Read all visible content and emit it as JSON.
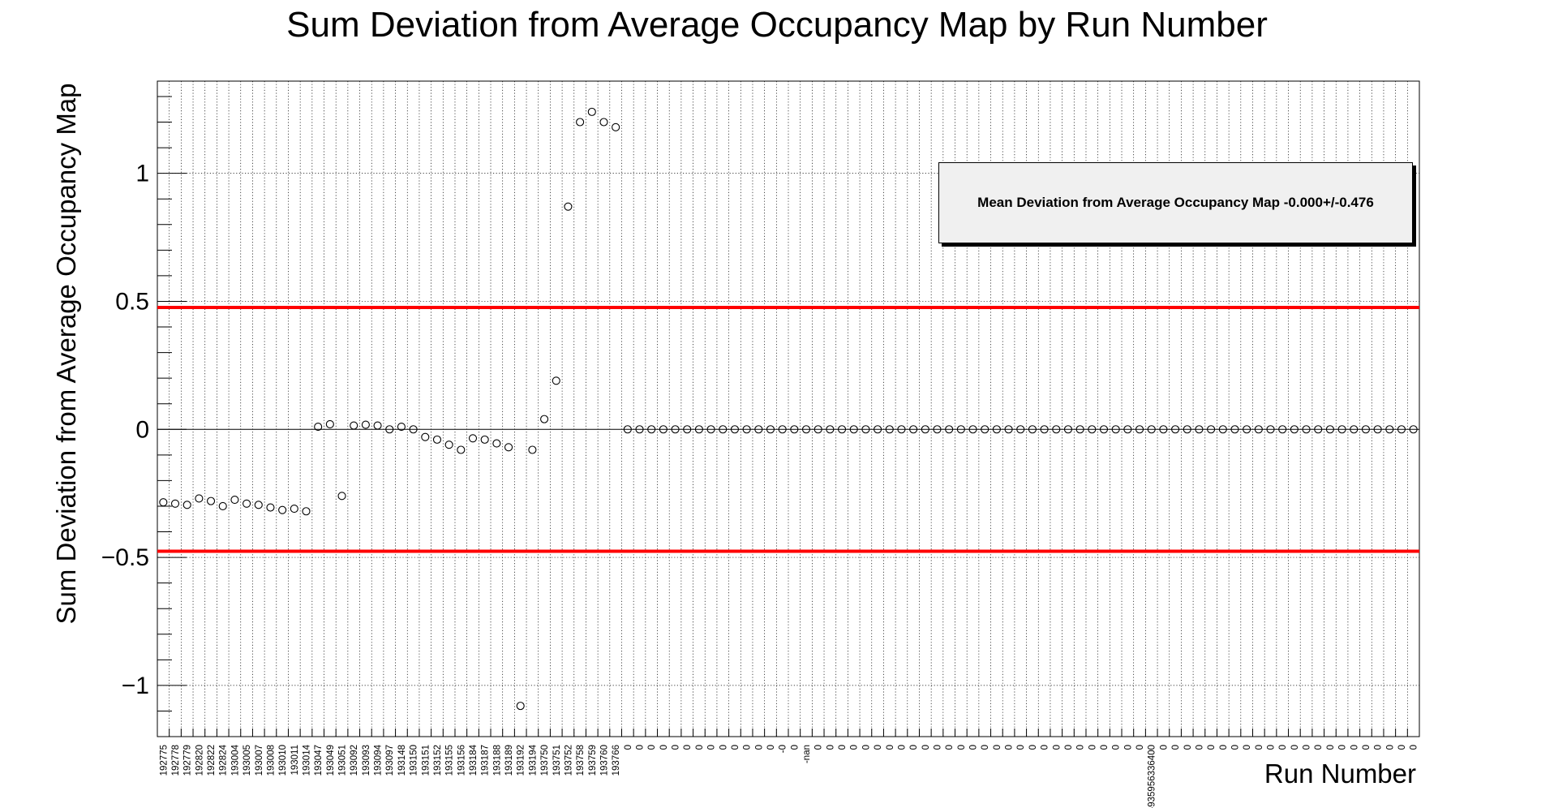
{
  "chart_data": {
    "type": "scatter",
    "title": "Sum Deviation from Average Occupancy Map by Run Number",
    "xlabel": "Run Number",
    "ylabel": "Sum Deviation from Average Occupancy Map",
    "ylim": [
      -1.2,
      1.36
    ],
    "yticks": [
      -1,
      -0.5,
      0,
      0.5,
      1
    ],
    "ytick_labels": [
      "−1",
      "−0.5",
      "0",
      "0.5",
      "1"
    ],
    "grid": true,
    "legend": {
      "text": "Mean Deviation from Average Occupancy Map -0.000+/-0.476",
      "position": "top-right"
    },
    "reference_lines": [
      {
        "y": 0.476,
        "color": "#ff0000"
      },
      {
        "y": -0.476,
        "color": "#ff0000"
      },
      {
        "y": 0,
        "color": "#000000"
      }
    ],
    "categories": [
      "192775",
      "192778",
      "192779",
      "192820",
      "192822",
      "192824",
      "193004",
      "193005",
      "193007",
      "193008",
      "193010",
      "193011",
      "193014",
      "193047",
      "193049",
      "193051",
      "193092",
      "193093",
      "193094",
      "193097",
      "193148",
      "193150",
      "193151",
      "193152",
      "193155",
      "193156",
      "193184",
      "193187",
      "193188",
      "193189",
      "193192",
      "193194",
      "193750",
      "193751",
      "193752",
      "193758",
      "193759",
      "193760",
      "193766",
      "0",
      "0",
      "0",
      "0",
      "0",
      "0",
      "0",
      "0",
      "0",
      "0",
      "0",
      "0",
      "0",
      "-0",
      "0",
      "-nan",
      "0",
      "0",
      "0",
      "0",
      "0",
      "0",
      "0",
      "0",
      "0",
      "0",
      "0",
      "0",
      "0",
      "0",
      "0",
      "0",
      "0",
      "0",
      "0",
      "0",
      "0",
      "0",
      "0",
      "0",
      "0",
      "0",
      "0",
      "0",
      "-935956336400",
      "0",
      "0",
      "0",
      "0",
      "0",
      "0",
      "0",
      "0",
      "0",
      "0",
      "0",
      "0",
      "0",
      "0",
      "0",
      "0",
      "0",
      "0",
      "0",
      "0",
      "0",
      "0"
    ],
    "values": [
      -0.285,
      -0.29,
      -0.295,
      -0.27,
      -0.28,
      -0.3,
      -0.275,
      -0.29,
      -0.295,
      -0.305,
      -0.315,
      -0.31,
      -0.32,
      0.01,
      0.02,
      -0.26,
      0.015,
      0.018,
      0.015,
      0.0,
      0.01,
      0.0,
      -0.03,
      -0.04,
      -0.06,
      -0.08,
      -0.035,
      -0.04,
      -0.055,
      -0.07,
      -1.08,
      -0.08,
      0.04,
      0.19,
      0.87,
      1.2,
      1.24,
      1.2,
      1.18,
      0,
      0,
      0,
      0,
      0,
      0,
      0,
      0,
      0,
      0,
      0,
      0,
      0,
      0,
      0,
      0,
      0,
      0,
      0,
      0,
      0,
      0,
      0,
      0,
      0,
      0,
      0,
      0,
      0,
      0,
      0,
      0,
      0,
      0,
      0,
      0,
      0,
      0,
      0,
      0,
      0,
      0,
      0,
      0,
      0,
      0,
      0,
      0,
      0,
      0,
      0,
      0,
      0,
      0,
      0,
      0,
      0,
      0,
      0,
      0,
      0,
      0,
      0,
      0,
      0,
      0,
      0
    ],
    "colors": {
      "markers": "#000000",
      "band": "#ff0000",
      "grid": "#000000"
    }
  }
}
